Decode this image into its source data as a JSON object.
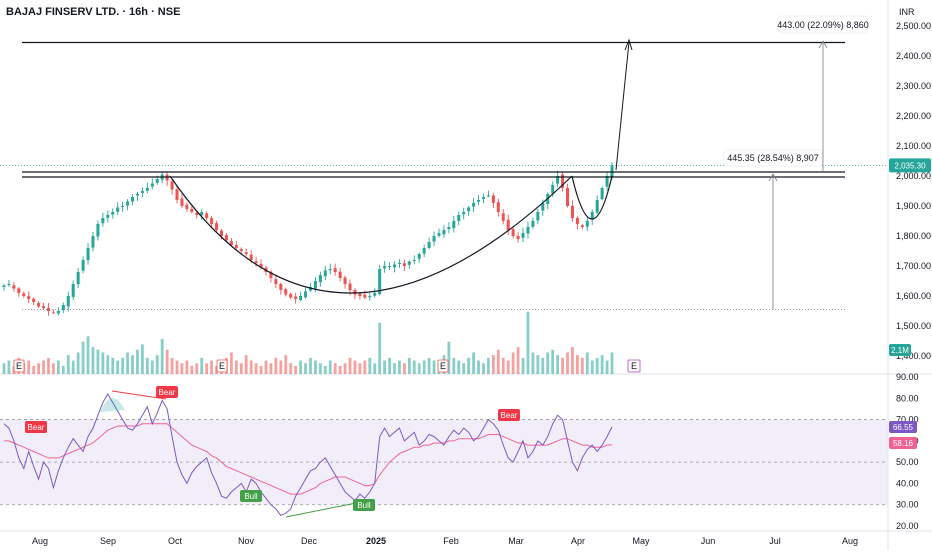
{
  "header": {
    "symbol": "BAJAJ FINSERV LTD. · 16h · NSE",
    "currency": "INR"
  },
  "colors": {
    "up": "#26a69a",
    "down": "#ef5350",
    "rsi_line": "#7e57c2",
    "rsi_ma": "#f06292",
    "rsi_band": "#ede7f6",
    "bull": "#43a047",
    "bear": "#f23645",
    "price_label": "#26a69a",
    "rsi_label": "#7e57c2",
    "rsi_ma_label": "#f06292",
    "volume_label": "#26a69a",
    "level_line": "#131722"
  },
  "chart_data": [
    {
      "type": "candlestick",
      "panel": "price",
      "ylim": [
        1400,
        2560
      ],
      "yticks": [
        "2,500.00",
        "2,400.00",
        "2,300.00",
        "2,200.00",
        "2,100.00",
        "2,000.00",
        "1,900.00",
        "1,800.00",
        "1,700.00",
        "1,600.00",
        "1,500.00",
        "1,400.00"
      ],
      "ytick_values": [
        2500,
        2400,
        2300,
        2200,
        2100,
        2000,
        1900,
        1800,
        1700,
        1600,
        1500,
        1400
      ],
      "xticks": [
        "Aug",
        "Sep",
        "Oct",
        "Nov",
        "Dec",
        "2025",
        "Feb",
        "Mar",
        "Apr",
        "May",
        "Jun",
        "Jul",
        "Aug"
      ],
      "last_price": "2,035.30",
      "last_value": 2035.3,
      "resistance_level": 2000,
      "support_level": 1555,
      "target_level": 2445,
      "measure_label_1": "445.35 (28.54%) 8,907",
      "measure_label_2": "443.00 (22.09%) 8,860",
      "volume_label": "2.1M",
      "earnings_marker": "E",
      "closes": [
        1635,
        1640,
        1625,
        1610,
        1600,
        1590,
        1580,
        1565,
        1560,
        1550,
        1545,
        1550,
        1570,
        1600,
        1640,
        1680,
        1720,
        1760,
        1800,
        1840,
        1860,
        1870,
        1880,
        1895,
        1900,
        1915,
        1930,
        1940,
        1950,
        1960,
        1975,
        1990,
        2005,
        1985,
        1955,
        1920,
        1900,
        1890,
        1880,
        1870,
        1880,
        1860,
        1840,
        1820,
        1800,
        1785,
        1770,
        1760,
        1750,
        1740,
        1720,
        1710,
        1695,
        1680,
        1660,
        1640,
        1620,
        1605,
        1595,
        1590,
        1600,
        1615,
        1630,
        1650,
        1670,
        1685,
        1690,
        1680,
        1660,
        1640,
        1620,
        1605,
        1600,
        1595,
        1600,
        1610,
        1690,
        1700,
        1700,
        1705,
        1710,
        1700,
        1715,
        1720,
        1740,
        1760,
        1780,
        1800,
        1810,
        1820,
        1830,
        1850,
        1870,
        1880,
        1895,
        1910,
        1920,
        1930,
        1935,
        1910,
        1880,
        1850,
        1820,
        1800,
        1790,
        1810,
        1830,
        1850,
        1880,
        1910,
        1940,
        1970,
        2000,
        1960,
        1900,
        1860,
        1840,
        1830,
        1850,
        1880,
        1920,
        1960,
        2000,
        2035
      ],
      "volumes": [
        0.4,
        0.5,
        0.3,
        0.6,
        0.4,
        0.5,
        0.3,
        0.4,
        0.5,
        0.6,
        0.4,
        0.5,
        0.3,
        0.7,
        0.5,
        0.8,
        1.2,
        1.4,
        1.0,
        0.9,
        0.8,
        0.7,
        0.6,
        0.5,
        0.6,
        0.8,
        0.7,
        0.9,
        1.1,
        0.6,
        0.5,
        0.7,
        1.3,
        0.9,
        0.6,
        0.5,
        0.4,
        0.5,
        0.3,
        0.4,
        0.6,
        0.4,
        0.5,
        0.3,
        0.4,
        0.6,
        0.8,
        0.5,
        0.4,
        0.7,
        0.5,
        0.4,
        0.3,
        0.5,
        0.4,
        0.6,
        0.5,
        0.7,
        0.4,
        0.3,
        0.5,
        0.4,
        0.6,
        0.5,
        0.4,
        0.3,
        0.5,
        0.4,
        0.3,
        0.4,
        0.6,
        0.5,
        0.4,
        0.5,
        0.6,
        0.4,
        1.9,
        0.5,
        0.6,
        0.4,
        0.5,
        0.4,
        0.6,
        0.5,
        0.4,
        0.5,
        0.6,
        0.5,
        0.4,
        0.7,
        1.2,
        0.6,
        0.5,
        0.4,
        0.6,
        0.8,
        0.5,
        0.4,
        0.6,
        0.7,
        0.9,
        0.6,
        0.5,
        0.8,
        1.0,
        0.6,
        2.3,
        0.8,
        0.7,
        0.6,
        0.8,
        0.9,
        0.7,
        0.6,
        0.8,
        1.0,
        0.7,
        0.6,
        0.8,
        0.5,
        0.6,
        0.7,
        0.5,
        0.8
      ]
    },
    {
      "type": "line",
      "panel": "rsi",
      "ylim": [
        20,
        90
      ],
      "yticks": [
        "90.00",
        "80.00",
        "70.00",
        "60.00",
        "50.00",
        "40.00",
        "30.00",
        "20.00"
      ],
      "ytick_values": [
        90,
        80,
        70,
        60,
        50,
        40,
        30,
        20
      ],
      "band": [
        30,
        70
      ],
      "rsi_value_label": "66.55",
      "rsi_ma_value_label": "58.16",
      "series": [
        {
          "values": [
            68,
            66,
            60,
            52,
            47,
            55,
            48,
            42,
            50,
            47,
            38,
            46,
            52,
            57,
            61,
            58,
            55,
            62,
            66,
            72,
            78,
            82,
            78,
            74,
            70,
            66,
            65,
            68,
            72,
            76,
            68,
            73,
            79,
            75,
            62,
            50,
            44,
            40,
            45,
            48,
            50,
            52,
            45,
            40,
            34,
            33,
            36,
            38,
            40,
            36,
            42,
            40,
            36,
            33,
            30,
            28,
            25,
            26,
            28,
            34,
            38,
            42,
            46,
            47,
            50,
            52,
            48,
            44,
            40,
            36,
            34,
            32,
            35,
            33,
            36,
            40,
            62,
            66,
            62,
            64,
            66,
            60,
            62,
            64,
            58,
            60,
            63,
            62,
            60,
            58,
            62,
            65,
            63,
            66,
            64,
            60,
            62,
            66,
            70,
            68,
            65,
            58,
            52,
            50,
            55,
            60,
            52,
            55,
            60,
            58,
            62,
            68,
            72,
            70,
            60,
            50,
            46,
            52,
            56,
            58,
            55,
            58,
            62,
            66.55
          ]
        },
        {
          "values": [
            60,
            60,
            59,
            58,
            57,
            56,
            55,
            54,
            53,
            52,
            52,
            52,
            53,
            54,
            55,
            56,
            57,
            58,
            59,
            61,
            63,
            65,
            66,
            67,
            67,
            67,
            67,
            67,
            68,
            68,
            68,
            68,
            68,
            68,
            66,
            64,
            62,
            60,
            58,
            57,
            56,
            55,
            53,
            52,
            50,
            48,
            47,
            46,
            45,
            44,
            43,
            42,
            41,
            40,
            39,
            38,
            37,
            36,
            35,
            35,
            35,
            36,
            37,
            38,
            40,
            41,
            42,
            43,
            43,
            43,
            42,
            41,
            40,
            39,
            39,
            40,
            44,
            47,
            50,
            52,
            54,
            55,
            56,
            57,
            57,
            58,
            58,
            59,
            59,
            59,
            60,
            60,
            61,
            61,
            61,
            61,
            61,
            62,
            63,
            63,
            63,
            62,
            61,
            60,
            59,
            59,
            58,
            58,
            58,
            58,
            58,
            59,
            60,
            61,
            61,
            60,
            59,
            58,
            58,
            57,
            57,
            57,
            58,
            58.16
          ]
        }
      ],
      "annotations": [
        {
          "text": "Bear",
          "type": "bear"
        },
        {
          "text": "Bear",
          "type": "bear"
        },
        {
          "text": "Bull",
          "type": "bull"
        },
        {
          "text": "Bull",
          "type": "bull"
        },
        {
          "text": "Bear",
          "type": "bear"
        }
      ]
    }
  ]
}
